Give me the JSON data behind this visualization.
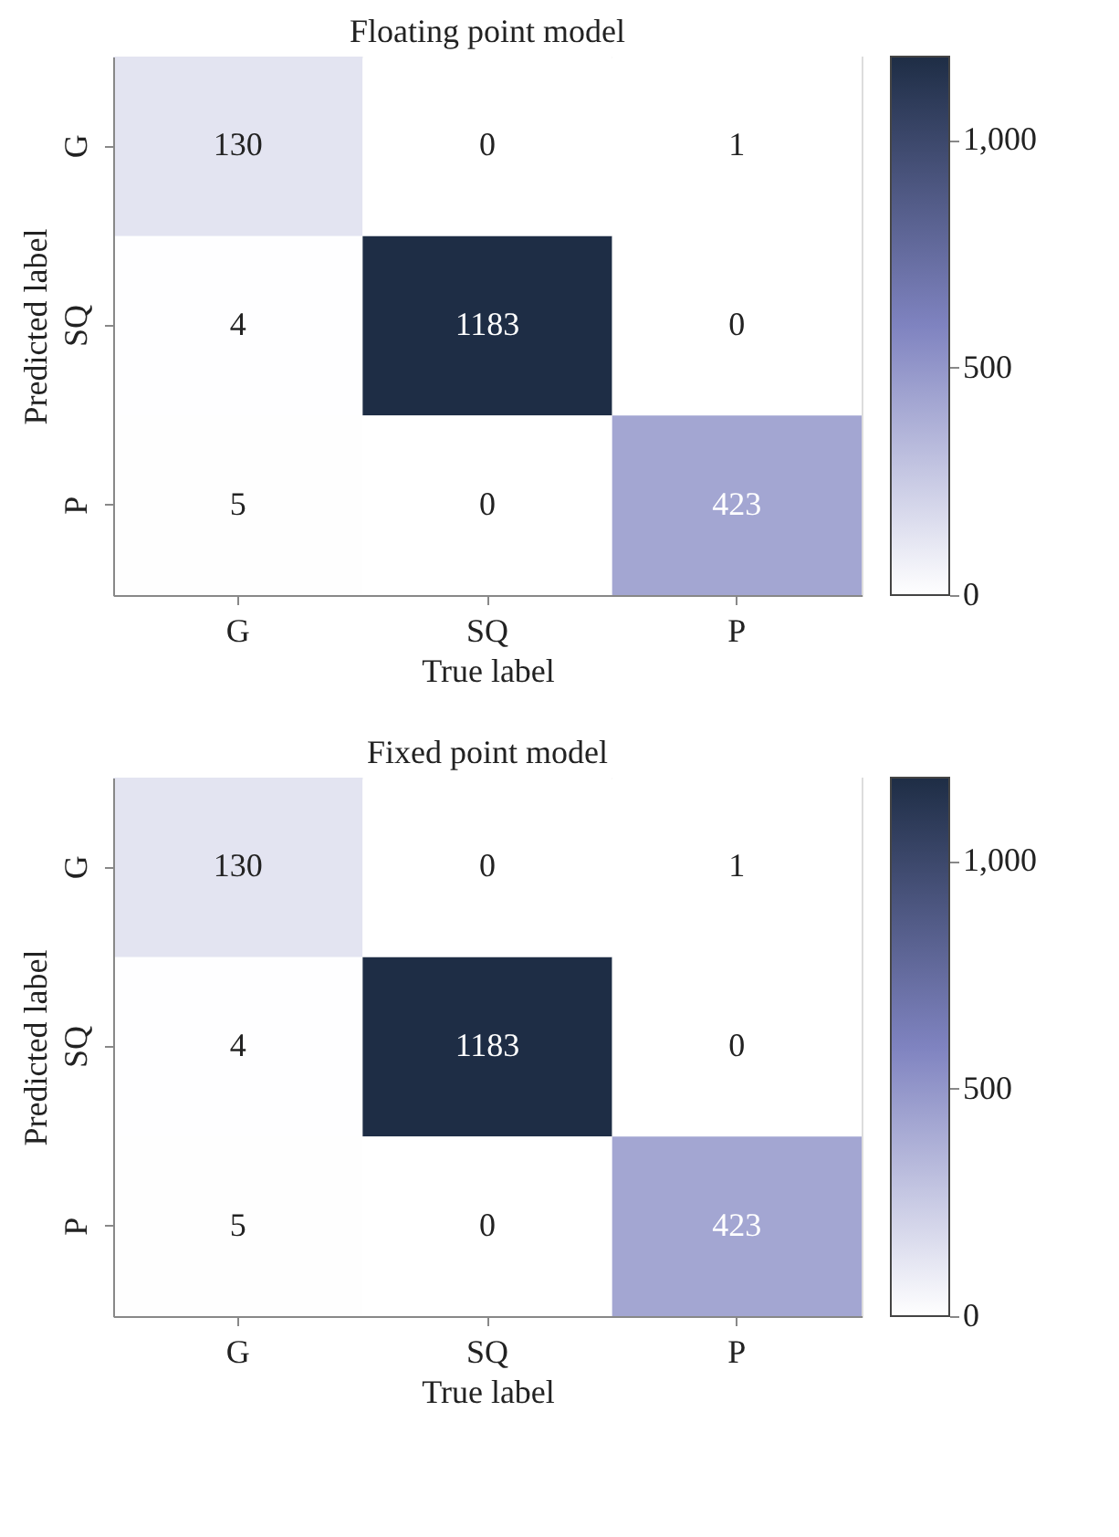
{
  "chart_data": [
    {
      "type": "heatmap",
      "title": "Floating point model",
      "xlabel": "True label",
      "ylabel": "Predicted label",
      "categories": [
        "G",
        "SQ",
        "P"
      ],
      "y_categories": [
        "G",
        "SQ",
        "P"
      ],
      "cells": [
        [
          130,
          0,
          1
        ],
        [
          4,
          1183,
          0
        ],
        [
          5,
          0,
          423
        ]
      ],
      "data_labels": true,
      "clim": [
        0,
        1183
      ],
      "cticks": [
        0,
        500,
        {
          "value": 1000,
          "label": "1,000"
        }
      ],
      "grid": false
    },
    {
      "type": "heatmap",
      "title": "Fixed point model",
      "xlabel": "True label",
      "ylabel": "Predicted label",
      "categories": [
        "G",
        "SQ",
        "P"
      ],
      "y_categories": [
        "G",
        "SQ",
        "P"
      ],
      "cells": [
        [
          130,
          0,
          1
        ],
        [
          4,
          1183,
          0
        ],
        [
          5,
          0,
          423
        ]
      ],
      "data_labels": true,
      "clim": [
        0,
        1183
      ],
      "cticks": [
        0,
        500,
        {
          "value": 1000,
          "label": "1,000"
        }
      ],
      "grid": false
    }
  ]
}
